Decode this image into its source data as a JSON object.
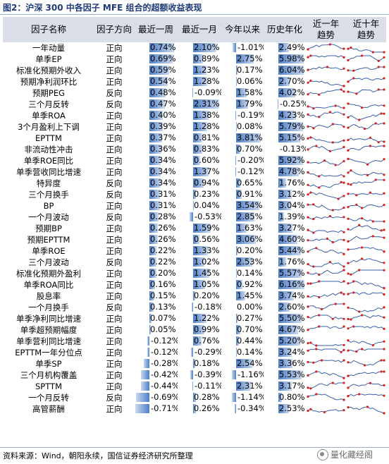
{
  "title": "图2：沪深 300 中各因子 MFE 组合的超额收益表现",
  "source": "资料来源：Wind，朝阳永续，国信证券经济研究所整理",
  "watermark": "量化藏经阁",
  "headers": [
    "因子名称",
    "因子方向",
    "最近一周",
    "最近一月",
    "今年以来",
    "历史年化",
    "近一年趋势",
    "近十年趋势"
  ],
  "rows": [
    {
      "name": "一年动量",
      "dir": "正向",
      "week": "0.74%",
      "month": "2.10%",
      "ytd": "-1.01%",
      "annual": "2.49%"
    },
    {
      "name": "单季EP",
      "dir": "正向",
      "week": "0.69%",
      "month": "0.89%",
      "ytd": "2.75%",
      "annual": "5.98%"
    },
    {
      "name": "标准化预期外收入",
      "dir": "正向",
      "week": "0.59%",
      "month": "1.23%",
      "ytd": "0.17%",
      "annual": "6.04%"
    },
    {
      "name": "预期净利润环比",
      "dir": "正向",
      "week": "0.54%",
      "month": "1.28%",
      "ytd": "0.06%",
      "annual": "2.70%"
    },
    {
      "name": "预期PEG",
      "dir": "反向",
      "week": "0.48%",
      "month": "-0.09%",
      "ytd": "1.58%",
      "annual": "4.02%"
    },
    {
      "name": "三个月反转",
      "dir": "反向",
      "week": "0.47%",
      "month": "2.31%",
      "ytd": "1.79%",
      "annual": "-0.25%"
    },
    {
      "name": "单季ROA",
      "dir": "正向",
      "week": "0.40%",
      "month": "1.38%",
      "ytd": "-0.19%",
      "annual": "4.23%"
    },
    {
      "name": "3个月盈利上下调",
      "dir": "正向",
      "week": "0.39%",
      "month": "1.28%",
      "ytd": "0.08%",
      "annual": "5.79%"
    },
    {
      "name": "EPTTM",
      "dir": "正向",
      "week": "0.37%",
      "month": "0.81%",
      "ytd": "3.81%",
      "annual": "5.15%"
    },
    {
      "name": "非流动性冲击",
      "dir": "正向",
      "week": "0.36%",
      "month": "0.83%",
      "ytd": "0.70%",
      "annual": "-0.13%"
    },
    {
      "name": "单季ROE同比",
      "dir": "正向",
      "week": "0.34%",
      "month": "0.60%",
      "ytd": "-0.20%",
      "annual": "5.92%"
    },
    {
      "name": "单季营收同比增速",
      "dir": "正向",
      "week": "0.34%",
      "month": "1.37%",
      "ytd": "-0.12%",
      "annual": "4.78%"
    },
    {
      "name": "特异度",
      "dir": "反向",
      "week": "0.34%",
      "month": "0.94%",
      "ytd": "0.65%",
      "annual": "1.76%"
    },
    {
      "name": "三个月换手",
      "dir": "反向",
      "week": "0.31%",
      "month": "0.23%",
      "ytd": "0.91%",
      "annual": "3.12%"
    },
    {
      "name": "BP",
      "dir": "正向",
      "week": "0.31%",
      "month": "0.04%",
      "ytd": "3.54%",
      "annual": "3.04%"
    },
    {
      "name": "一个月波动",
      "dir": "反向",
      "week": "0.28%",
      "month": "-0.53%",
      "ytd": "2.85%",
      "annual": "1.39%"
    },
    {
      "name": "预期BP",
      "dir": "正向",
      "week": "0.26%",
      "month": "1.59%",
      "ytd": "1.63%",
      "annual": "3.27%"
    },
    {
      "name": "预期EPTTM",
      "dir": "正向",
      "week": "0.26%",
      "month": "0.56%",
      "ytd": "3.06%",
      "annual": "4.60%"
    },
    {
      "name": "单季ROE",
      "dir": "正向",
      "week": "0.22%",
      "month": "1.33%",
      "ytd": "0.20%",
      "annual": "5.44%"
    },
    {
      "name": "三个月波动",
      "dir": "反向",
      "week": "0.22%",
      "month": "1.02%",
      "ytd": "2.53%",
      "annual": "1.76%"
    },
    {
      "name": "标准化预期外盈利",
      "dir": "正向",
      "week": "0.20%",
      "month": "1.45%",
      "ytd": "0.14%",
      "annual": "5.57%"
    },
    {
      "name": "单季ROA同比",
      "dir": "正向",
      "week": "0.16%",
      "month": "1.05%",
      "ytd": "0.92%",
      "annual": "6.16%"
    },
    {
      "name": "股息率",
      "dir": "正向",
      "week": "0.15%",
      "month": "0.20%",
      "ytd": "1.45%",
      "annual": "3.74%"
    },
    {
      "name": "一个月换手",
      "dir": "反向",
      "week": "0.13%",
      "month": "-0.18%",
      "ytd": "0.00%",
      "annual": "2.60%"
    },
    {
      "name": "单季净利同比增速",
      "dir": "正向",
      "week": "0.07%",
      "month": "1.22%",
      "ytd": "0.27%",
      "annual": "5.50%"
    },
    {
      "name": "单季超预期幅度",
      "dir": "正向",
      "week": "0.05%",
      "month": "0.99%",
      "ytd": "0.70%",
      "annual": "4.67%"
    },
    {
      "name": "单季营利同比增速",
      "dir": "正向",
      "week": "-0.12%",
      "month": "0.76%",
      "ytd": "0.44%",
      "annual": "5.20%"
    },
    {
      "name": "EPTTM一年分位点",
      "dir": "正向",
      "week": "-0.12%",
      "month": "-0.29%",
      "ytd": "0.14%",
      "annual": "3.24%"
    },
    {
      "name": "单季SP",
      "dir": "正向",
      "week": "-0.28%",
      "month": "0.18%",
      "ytd": "2.54%",
      "annual": "3.36%"
    },
    {
      "name": "三个月机构覆盖",
      "dir": "正向",
      "week": "-0.42%",
      "month": "-0.39%",
      "ytd": "-1.16%",
      "annual": "5.53%"
    },
    {
      "name": "SPTTM",
      "dir": "正向",
      "week": "-0.44%",
      "month": "-0.11%",
      "ytd": "2.31%",
      "annual": "3.17%"
    },
    {
      "name": "一个月反转",
      "dir": "反向",
      "week": "-0.69%",
      "month": "0.28%",
      "ytd": "-1.14%",
      "annual": "0.80%"
    },
    {
      "name": "高管薪酬",
      "dir": "正向",
      "week": "-0.71%",
      "month": "0.26%",
      "ytd": "-0.34%",
      "annual": "2.53%"
    }
  ],
  "colors": {
    "bar": "#4f7fc6",
    "bar_light": "#c9d8ef",
    "header_bg": "#d9dee8",
    "spark": "#3a5fa8",
    "spark_point": "#d82020"
  }
}
